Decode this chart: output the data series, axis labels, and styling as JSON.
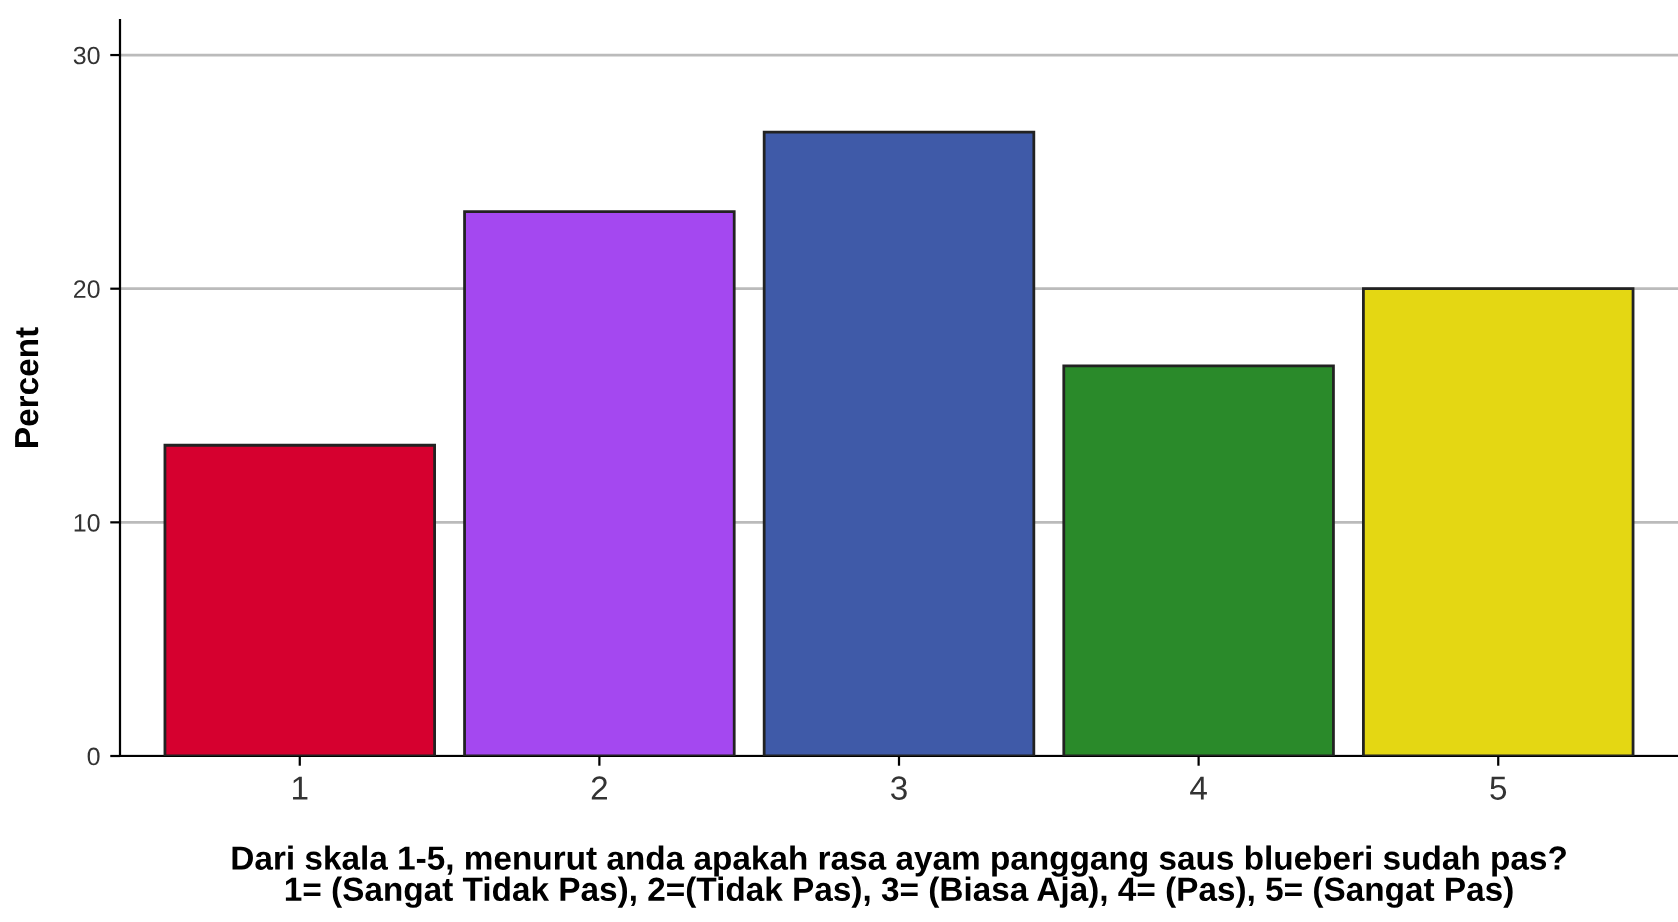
{
  "chart_data": {
    "type": "bar",
    "categories": [
      "1",
      "2",
      "3",
      "4",
      "5"
    ],
    "values": [
      13.3,
      23.3,
      26.7,
      16.7,
      20.0
    ],
    "colors": [
      "#d6002f",
      "#a448f0",
      "#3f5aa8",
      "#2a8a2a",
      "#e4d713"
    ],
    "xlabel": "Dari skala 1-5, menurut anda apakah rasa ayam panggang saus blueberi sudah pas?\n1= (Sangat Tidak Pas), 2=(Tidak Pas), 3= (Biasa Aja), 4= (Pas), 5= (Sangat Pas)",
    "ylabel": "Percent",
    "ylim": [
      0,
      31.5
    ],
    "yticks": [
      0,
      10,
      20,
      30
    ],
    "grid": "y"
  }
}
